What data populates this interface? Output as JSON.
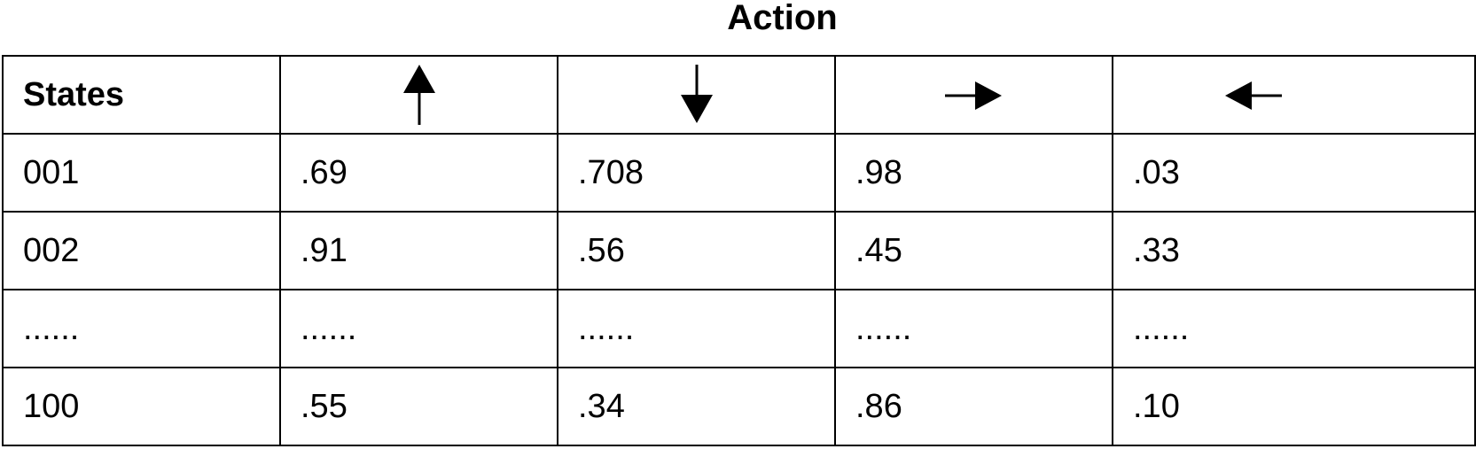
{
  "table": {
    "title": "Action",
    "header": {
      "states_label": "States",
      "actions": [
        {
          "icon": "arrow-up-icon"
        },
        {
          "icon": "arrow-down-icon"
        },
        {
          "icon": "arrow-right-icon"
        },
        {
          "icon": "arrow-left-icon"
        }
      ]
    },
    "rows": [
      {
        "state": "001",
        "values": [
          ".69",
          ".708",
          ".98",
          ".03"
        ]
      },
      {
        "state": "002",
        "values": [
          ".91",
          ".56",
          ".45",
          ".33"
        ]
      },
      {
        "state": "......",
        "values": [
          "......",
          "......",
          "......",
          "......"
        ]
      },
      {
        "state": "100",
        "values": [
          ".55",
          ".34",
          ".86",
          ".10"
        ]
      }
    ]
  }
}
